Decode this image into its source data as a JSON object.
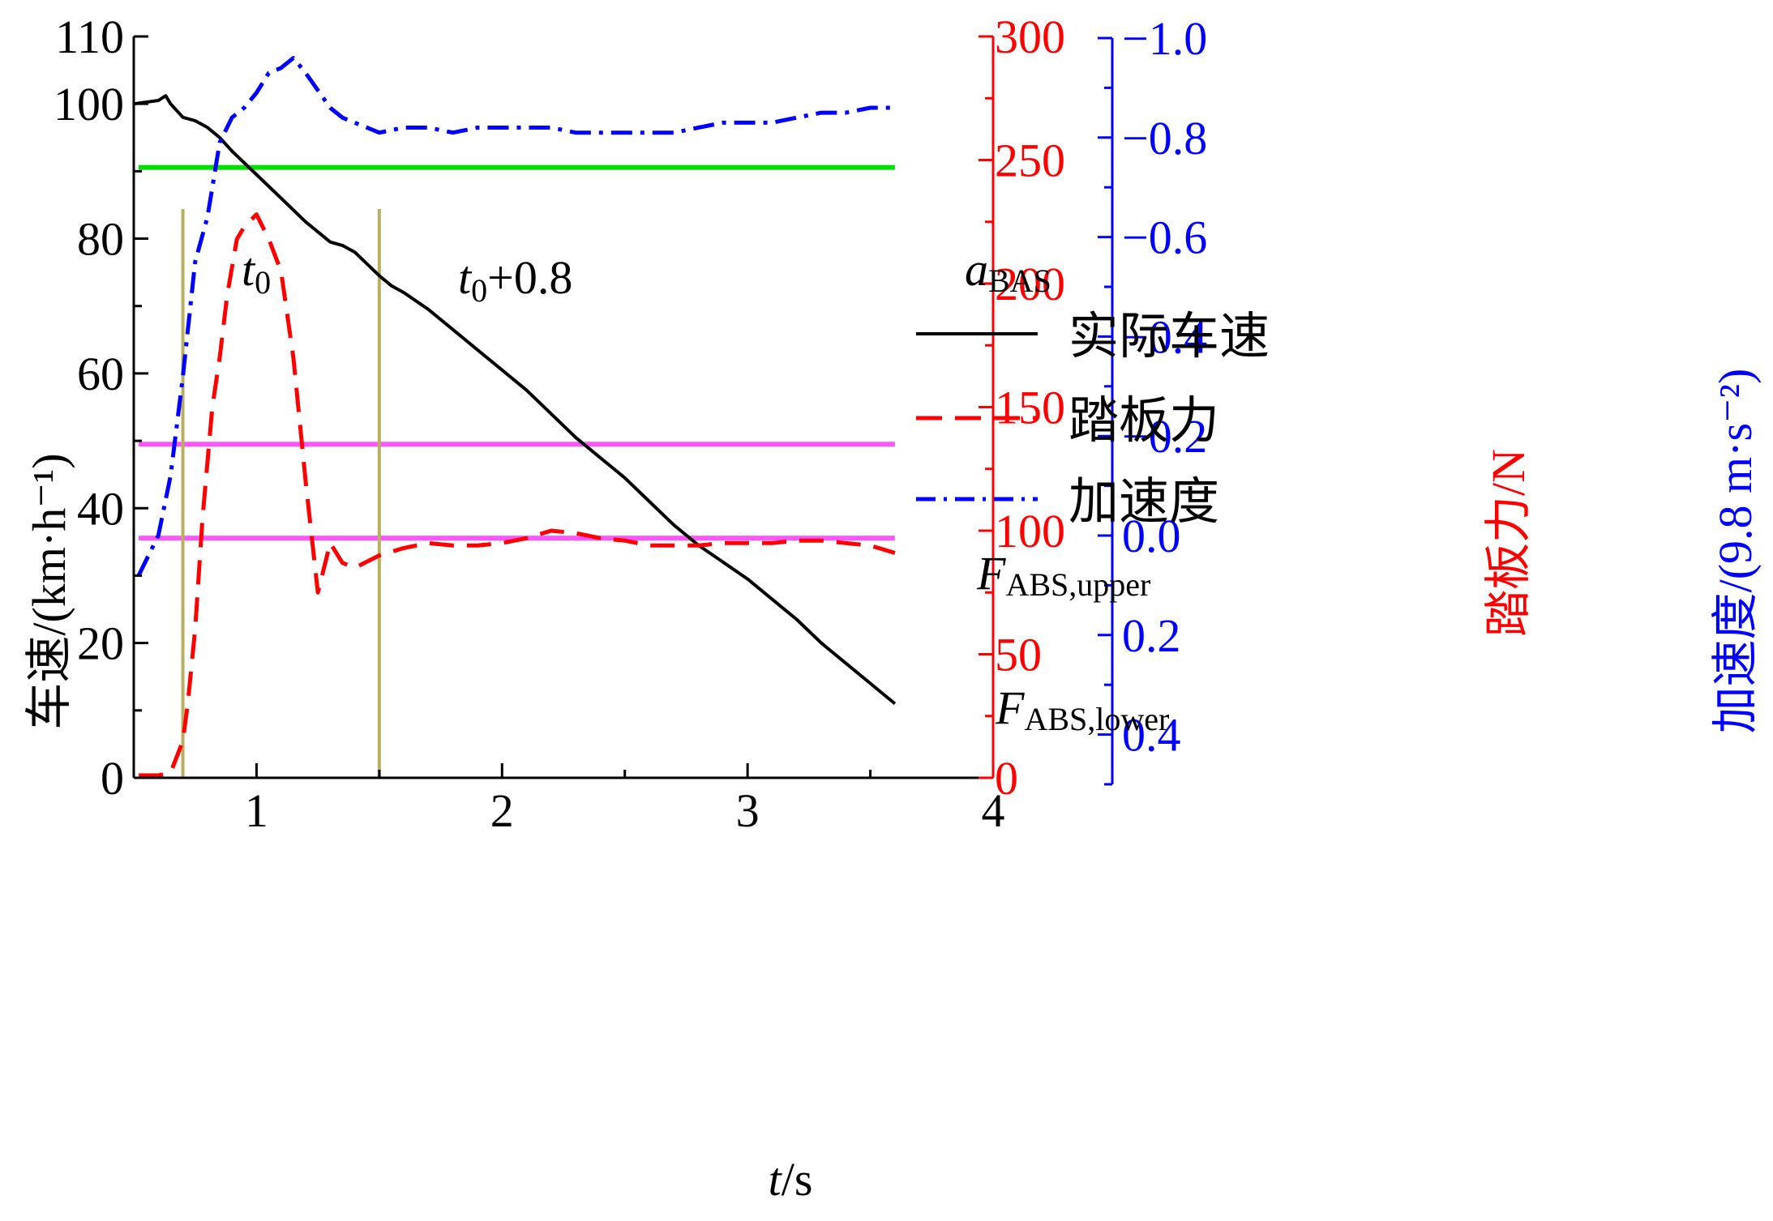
{
  "chart_data": {
    "type": "line",
    "title": "",
    "xlabel": {
      "italic": "t",
      "rest": "/s"
    },
    "ylabel_left": "车速/(km·h⁻¹)",
    "ylabel_mid": "踏板力/N",
    "ylabel_right": "加速度/(9.8 m·s⁻²)",
    "xlim": [
      0.5,
      4.0
    ],
    "xticks": [
      1,
      2,
      3,
      4
    ],
    "ylim_left": [
      0,
      110
    ],
    "yticks_left": [
      0,
      20,
      40,
      60,
      80,
      100,
      110
    ],
    "ylim_mid": [
      0,
      300
    ],
    "yticks_mid": [
      0,
      50,
      100,
      150,
      200,
      250,
      300
    ],
    "ylim_right": [
      0.5,
      -1.0
    ],
    "yticks_right": [
      "0.4",
      "0.2",
      "0.0",
      "−0.2",
      "−0.4",
      "−0.6",
      "−0.8",
      "−1.0"
    ],
    "yticks_right_values": [
      0.4,
      0.2,
      0.0,
      -0.2,
      -0.4,
      -0.6,
      -0.8,
      -1.0
    ],
    "legend": {
      "placement": "upper-right",
      "items": [
        "实际车速",
        "踏板力",
        "加速度"
      ]
    },
    "colors": {
      "speed": "#000000",
      "pedal": "#ff0000",
      "accel": "#0000ff",
      "a_bas": "#00e000",
      "f_abs": "#ff55ff",
      "markers": "#b8b060",
      "mid_axis": "#ff0000",
      "right_axis": "#0000ff"
    },
    "series": [
      {
        "name": "实际车速",
        "axis": "left",
        "x": [
          0.5,
          0.6,
          0.63,
          0.65,
          0.7,
          0.72,
          0.75,
          0.8,
          0.85,
          0.9,
          1.0,
          1.1,
          1.2,
          1.25,
          1.3,
          1.35,
          1.4,
          1.5,
          1.55,
          1.6,
          1.7,
          1.8,
          1.9,
          2.0,
          2.1,
          2.2,
          2.3,
          2.4,
          2.5,
          2.6,
          2.7,
          2.8,
          2.9,
          3.0,
          3.1,
          3.2,
          3.3,
          3.4,
          3.5,
          3.55,
          3.6
        ],
        "values": [
          100,
          100.5,
          101.2,
          100,
          98,
          97.8,
          97.5,
          96.5,
          95,
          93,
          89.5,
          86,
          82.5,
          81,
          79.5,
          79,
          78,
          74.5,
          73,
          72,
          69.5,
          66.5,
          63.5,
          60.5,
          57.5,
          54,
          50.5,
          47.5,
          44.5,
          41,
          37.5,
          34.5,
          32,
          29.5,
          26.5,
          23.5,
          20,
          17,
          14,
          12.5,
          11
        ]
      },
      {
        "name": "踏板力",
        "axis": "mid",
        "x": [
          0.52,
          0.6,
          0.65,
          0.7,
          0.72,
          0.75,
          0.78,
          0.82,
          0.85,
          0.88,
          0.92,
          0.95,
          1.0,
          1.05,
          1.1,
          1.15,
          1.2,
          1.25,
          1.3,
          1.35,
          1.4,
          1.5,
          1.6,
          1.7,
          1.8,
          1.9,
          2.0,
          2.1,
          2.2,
          2.3,
          2.4,
          2.5,
          2.6,
          2.7,
          2.8,
          2.9,
          3.0,
          3.1,
          3.2,
          3.3,
          3.4,
          3.5,
          3.6
        ],
        "values": [
          1,
          1,
          2,
          15,
          30,
          60,
          105,
          150,
          170,
          195,
          218,
          223,
          228,
          218,
          205,
          170,
          120,
          75,
          95,
          87,
          85,
          90,
          93,
          95,
          94,
          94,
          95,
          97,
          100,
          99,
          97,
          96,
          94,
          94,
          94,
          95,
          95,
          95,
          96,
          96,
          95,
          94,
          91
        ]
      },
      {
        "name": "加速度",
        "axis": "right",
        "x": [
          0.52,
          0.6,
          0.65,
          0.7,
          0.75,
          0.8,
          0.85,
          0.9,
          0.95,
          1.0,
          1.05,
          1.1,
          1.15,
          1.2,
          1.3,
          1.35,
          1.4,
          1.5,
          1.6,
          1.7,
          1.8,
          1.9,
          2.0,
          2.1,
          2.2,
          2.3,
          2.4,
          2.5,
          2.6,
          2.7,
          2.8,
          2.9,
          3.0,
          3.1,
          3.2,
          3.3,
          3.4,
          3.5,
          3.6
        ],
        "values": [
          0.08,
          0.0,
          -0.12,
          -0.32,
          -0.55,
          -0.64,
          -0.79,
          -0.84,
          -0.86,
          -0.89,
          -0.93,
          -0.94,
          -0.96,
          -0.93,
          -0.86,
          -0.84,
          -0.83,
          -0.81,
          -0.82,
          -0.82,
          -0.81,
          -0.82,
          -0.82,
          -0.82,
          -0.82,
          -0.81,
          -0.81,
          -0.81,
          -0.81,
          -0.81,
          -0.82,
          -0.83,
          -0.83,
          -0.83,
          -0.84,
          -0.85,
          -0.85,
          -0.86,
          -0.86
        ]
      }
    ],
    "reference_lines": [
      {
        "label_italic": "a",
        "label_sub": "BAS",
        "axis": "right",
        "value": -0.74,
        "x_start": 0.52,
        "x_end": 3.6
      },
      {
        "label_italic": "F",
        "label_sub": "ABS,upper",
        "axis": "mid",
        "value": 135,
        "x_start": 0.52,
        "x_end": 3.6
      },
      {
        "label_italic": "F",
        "label_sub": "ABS,lower",
        "axis": "mid",
        "value": 97,
        "x_start": 0.52,
        "x_end": 3.6
      }
    ],
    "markers": [
      {
        "label_italic": "t",
        "label_sub": "0",
        "label_rest": "",
        "x": 0.7
      },
      {
        "label_italic": "t",
        "label_sub": "0",
        "label_rest": "+0.8",
        "x": 1.5
      }
    ]
  }
}
